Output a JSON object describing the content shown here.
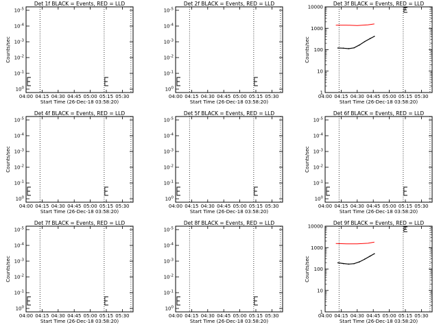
{
  "chart_data": [
    {
      "type": "line",
      "title": "Det 1f BLACK = Events, RED = LLD",
      "xlabel": "Start Time (26-Dec-18 03:58:20)",
      "ylabel": "Counts/sec",
      "x_ticks": [
        "04:00",
        "04:15",
        "04:30",
        "04:45",
        "05:00",
        "05:15",
        "05:30"
      ],
      "xlim": [
        "04:00",
        "05:40"
      ],
      "y_ticks": [
        "10^0",
        "10^-1",
        "10^-2",
        "10^-3",
        "10^-4",
        "10^-5"
      ],
      "yscale": "log",
      "dotted_vlines": [
        "04:13",
        "05:13",
        "05:38"
      ],
      "bracket_markers": [
        "04:00",
        "05:13"
      ],
      "series": []
    },
    {
      "type": "line",
      "title": "Det 2f BLACK = Events, RED = LLD",
      "xlabel": "Start Time (26-Dec-18 03:58:20)",
      "ylabel": "",
      "x_ticks": [
        "04:00",
        "04:15",
        "04:30",
        "04:45",
        "05:00",
        "05:15",
        "05:30"
      ],
      "xlim": [
        "04:00",
        "05:40"
      ],
      "y_ticks": [
        "10^0",
        "10^-1",
        "10^-2",
        "10^-3",
        "10^-4",
        "10^-5"
      ],
      "yscale": "log",
      "dotted_vlines": [
        "04:13",
        "05:13",
        "05:38"
      ],
      "bracket_markers": [
        "04:00",
        "05:13"
      ],
      "series": []
    },
    {
      "type": "line",
      "title": "Det 3f BLACK = Events, RED = LLD",
      "xlabel": "Start Time (26-Dec-18 03:58:20)",
      "ylabel": "Counts/sec",
      "x_ticks": [
        "04:00",
        "04:15",
        "04:30",
        "04:45",
        "05:00",
        "05:15",
        "05:30"
      ],
      "xlim": [
        "04:00",
        "05:40"
      ],
      "y_ticks": [
        "10000",
        "1000",
        "100",
        "10",
        "1"
      ],
      "yscale": "log",
      "ylim": [
        1,
        10000
      ],
      "dotted_vlines": [
        "04:13",
        "05:13",
        "05:38"
      ],
      "bracket_markers": [
        "05:13"
      ],
      "series": [
        {
          "color": "#ff0000",
          "x": [
            "04:10",
            "04:20",
            "04:30",
            "04:40",
            "04:46"
          ],
          "values": [
            1400,
            1400,
            1350,
            1450,
            1600
          ]
        },
        {
          "color": "#000000",
          "x": [
            "04:12",
            "04:17",
            "04:22",
            "04:27",
            "04:32",
            "04:37",
            "04:42",
            "04:46"
          ],
          "values": [
            120,
            118,
            112,
            122,
            165,
            240,
            330,
            420
          ]
        }
      ]
    },
    {
      "type": "line",
      "title": "Det 4f BLACK = Events, RED = LLD",
      "xlabel": "Start Time (26-Dec-18 03:58:20)",
      "ylabel": "Counts/sec",
      "x_ticks": [
        "04:00",
        "04:15",
        "04:30",
        "04:45",
        "05:00",
        "05:15",
        "05:30"
      ],
      "xlim": [
        "04:00",
        "05:40"
      ],
      "y_ticks": [
        "10^0",
        "10^-1",
        "10^-2",
        "10^-3",
        "10^-4",
        "10^-5"
      ],
      "yscale": "log",
      "dotted_vlines": [
        "04:13",
        "05:13",
        "05:38"
      ],
      "bracket_markers": [
        "04:00",
        "05:13"
      ],
      "series": []
    },
    {
      "type": "line",
      "title": "Det 5f BLACK = Events, RED = LLD",
      "xlabel": "Start Time (26-Dec-18 03:58:20)",
      "ylabel": "",
      "x_ticks": [
        "04:00",
        "04:15",
        "04:30",
        "04:45",
        "05:00",
        "05:15",
        "05:30"
      ],
      "xlim": [
        "04:00",
        "05:40"
      ],
      "y_ticks": [
        "10^0",
        "10^-1",
        "10^-2",
        "10^-3",
        "10^-4",
        "10^-5"
      ],
      "yscale": "log",
      "dotted_vlines": [
        "04:13",
        "05:13",
        "05:38"
      ],
      "bracket_markers": [
        "04:00",
        "05:13"
      ],
      "series": []
    },
    {
      "type": "line",
      "title": "Det 6f BLACK = Events, RED = LLD",
      "xlabel": "Start Time (26-Dec-18 03:58:20)",
      "ylabel": "Counts/sec",
      "x_ticks": [
        "04:00",
        "04:15",
        "04:30",
        "04:45",
        "05:00",
        "05:15",
        "05:30"
      ],
      "xlim": [
        "04:00",
        "05:40"
      ],
      "y_ticks": [
        "10^0",
        "10^-1",
        "10^-2",
        "10^-3",
        "10^-4",
        "10^-5"
      ],
      "yscale": "log",
      "dotted_vlines": [
        "04:13",
        "05:13",
        "05:38"
      ],
      "bracket_markers": [
        "04:00",
        "05:13"
      ],
      "series": []
    },
    {
      "type": "line",
      "title": "Det 7f BLACK = Events, RED = LLD",
      "xlabel": "Start Time (26-Dec-18 03:58:20)",
      "ylabel": "Counts/sec",
      "x_ticks": [
        "04:00",
        "04:15",
        "04:30",
        "04:45",
        "05:00",
        "05:15",
        "05:30"
      ],
      "xlim": [
        "04:00",
        "05:40"
      ],
      "y_ticks": [
        "10^0",
        "10^-1",
        "10^-2",
        "10^-3",
        "10^-4",
        "10^-5"
      ],
      "yscale": "log",
      "dotted_vlines": [
        "04:13",
        "05:13",
        "05:38"
      ],
      "bracket_markers": [
        "04:00",
        "05:13"
      ],
      "series": []
    },
    {
      "type": "line",
      "title": "Det 8f BLACK = Events, RED = LLD",
      "xlabel": "Start Time (26-Dec-18 03:58:20)",
      "ylabel": "",
      "x_ticks": [
        "04:00",
        "04:15",
        "04:30",
        "04:45",
        "05:00",
        "05:15",
        "05:30"
      ],
      "xlim": [
        "04:00",
        "05:40"
      ],
      "y_ticks": [
        "10^0",
        "10^-1",
        "10^-2",
        "10^-3",
        "10^-4",
        "10^-5"
      ],
      "yscale": "log",
      "dotted_vlines": [
        "04:13",
        "05:13",
        "05:38"
      ],
      "bracket_markers": [
        "04:00",
        "05:13"
      ],
      "series": []
    },
    {
      "type": "line",
      "title": "Det 9f BLACK = Events, RED = LLD",
      "xlabel": "Start Time (26-Dec-18 03:58:20)",
      "ylabel": "Counts/sec",
      "x_ticks": [
        "04:00",
        "04:15",
        "04:30",
        "04:45",
        "05:00",
        "05:15",
        "05:30"
      ],
      "xlim": [
        "04:00",
        "05:40"
      ],
      "y_ticks": [
        "10000",
        "1000",
        "100",
        "10",
        "1"
      ],
      "yscale": "log",
      "ylim": [
        1,
        10000
      ],
      "dotted_vlines": [
        "04:13",
        "05:13",
        "05:38"
      ],
      "bracket_markers": [
        "05:13"
      ],
      "series": [
        {
          "color": "#ff0000",
          "x": [
            "04:10",
            "04:20",
            "04:30",
            "04:40",
            "04:46"
          ],
          "values": [
            1550,
            1500,
            1500,
            1600,
            1800
          ]
        },
        {
          "color": "#000000",
          "x": [
            "04:12",
            "04:17",
            "04:22",
            "04:27",
            "04:32",
            "04:37",
            "04:42",
            "04:46"
          ],
          "values": [
            195,
            180,
            170,
            178,
            215,
            290,
            400,
            520
          ]
        }
      ]
    }
  ]
}
